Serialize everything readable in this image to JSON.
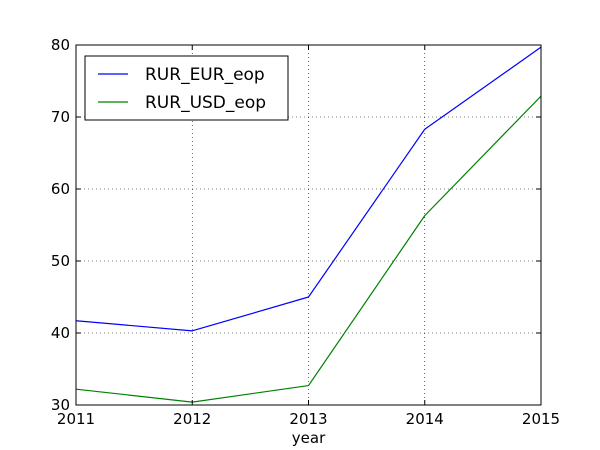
{
  "chart_data": {
    "type": "line",
    "title": "",
    "xlabel": "year",
    "ylabel": "",
    "x": [
      2011,
      2012,
      2013,
      2014,
      2015
    ],
    "xlim": [
      2011,
      2015
    ],
    "ylim": [
      30,
      80
    ],
    "xticks": [
      "2011",
      "2012",
      "2013",
      "2014",
      "2015"
    ],
    "yticks": [
      "30",
      "40",
      "50",
      "60",
      "70",
      "80"
    ],
    "grid": true,
    "legend_position": "top-left",
    "series": [
      {
        "name": "RUR_EUR_eop",
        "color": "#0000ff",
        "values": [
          41.7,
          40.3,
          45.0,
          68.3,
          79.7
        ]
      },
      {
        "name": "RUR_USD_eop",
        "color": "#008000",
        "values": [
          32.2,
          30.4,
          32.7,
          56.3,
          72.9
        ]
      }
    ]
  }
}
